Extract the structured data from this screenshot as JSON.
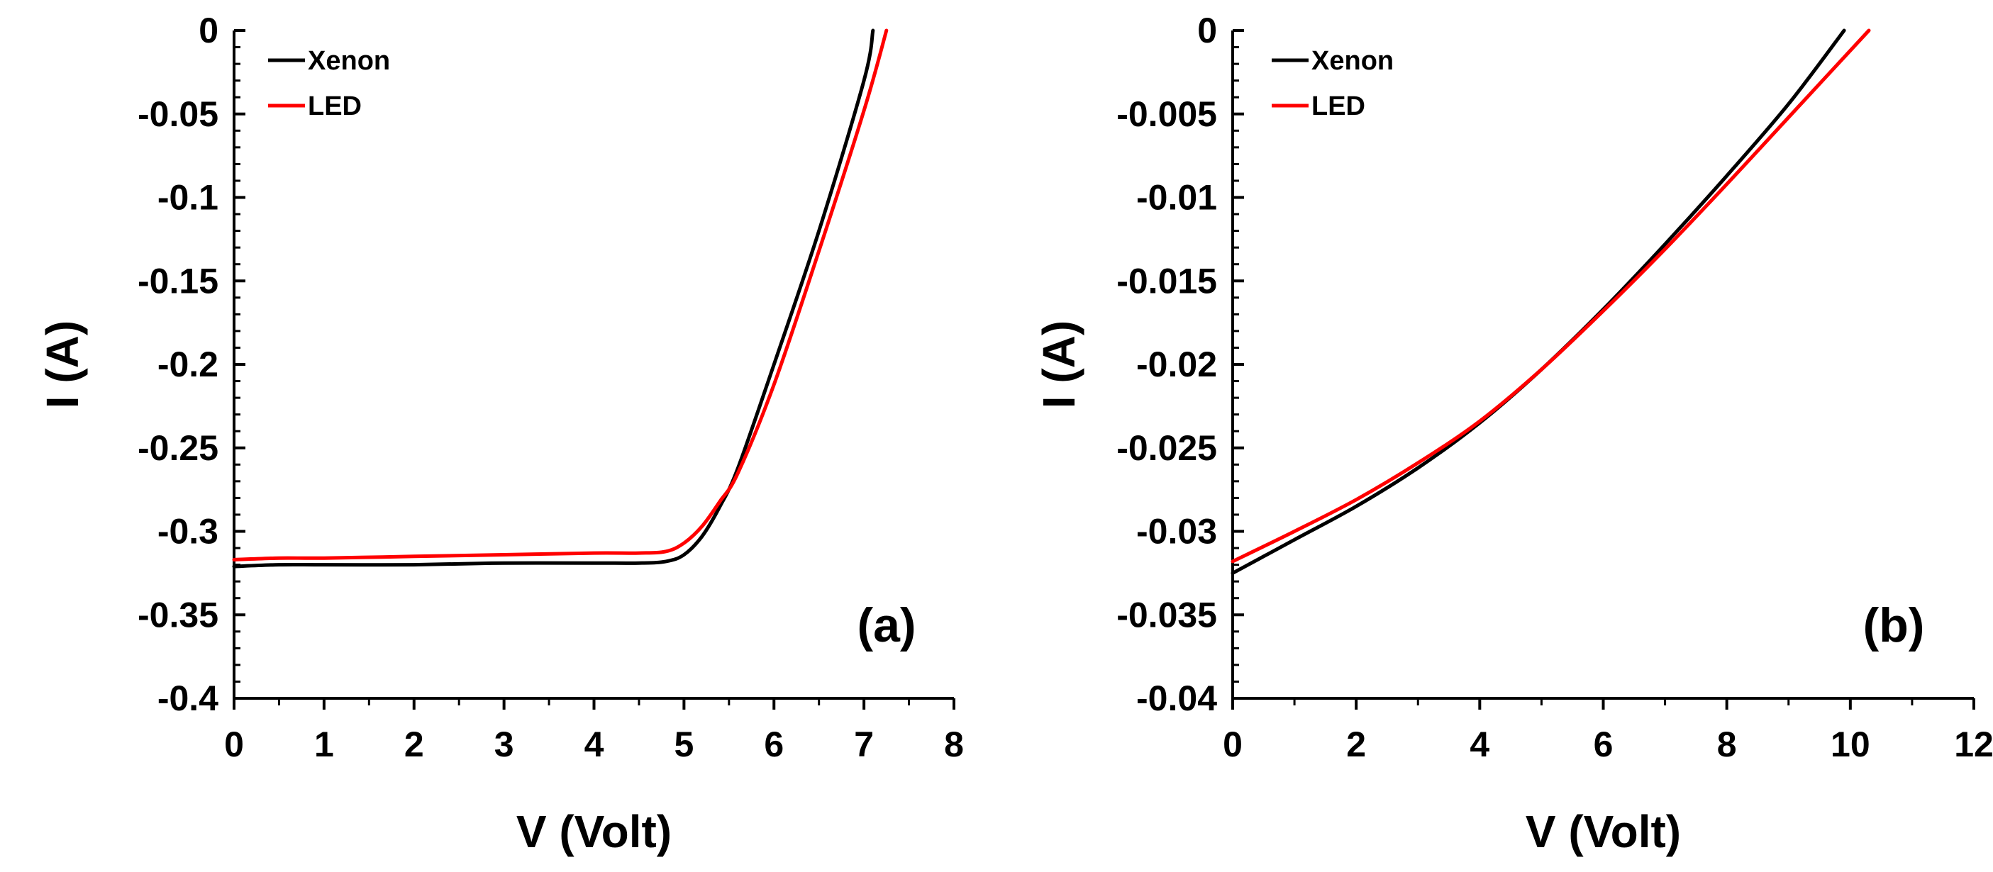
{
  "chart_data": [
    {
      "type": "line",
      "panel_label": "(a)",
      "xlabel": "V (Volt)",
      "ylabel": "I (A)",
      "xlim": [
        0,
        8
      ],
      "ylim": [
        -0.4,
        0
      ],
      "xticks": [
        0,
        1,
        2,
        3,
        4,
        5,
        6,
        7,
        8
      ],
      "xtick_labels": [
        "0",
        "1",
        "2",
        "3",
        "4",
        "5",
        "6",
        "7",
        "8"
      ],
      "yticks": [
        0,
        -0.05,
        -0.1,
        -0.15,
        -0.2,
        -0.25,
        -0.3,
        -0.35,
        -0.4
      ],
      "ytick_labels": [
        "0",
        "-0.05",
        "-0.1",
        "-0.15",
        "-0.2",
        "-0.25",
        "-0.3",
        "-0.35",
        "-0.4"
      ],
      "legend_position": "top-left",
      "series": [
        {
          "name": "Xenon",
          "color": "#000000",
          "x": [
            0,
            0.5,
            1,
            2,
            3,
            4,
            4.5,
            4.8,
            5.0,
            5.2,
            5.4,
            5.6,
            6.0,
            6.5,
            7.0,
            7.1
          ],
          "y": [
            -0.321,
            -0.32,
            -0.32,
            -0.32,
            -0.319,
            -0.319,
            -0.319,
            -0.318,
            -0.314,
            -0.303,
            -0.285,
            -0.262,
            -0.2,
            -0.12,
            -0.03,
            0
          ]
        },
        {
          "name": "LED",
          "color": "#ff0000",
          "x": [
            0,
            0.5,
            1,
            2,
            3,
            4,
            4.5,
            4.8,
            5.0,
            5.2,
            5.4,
            5.6,
            6.0,
            6.5,
            7.0,
            7.25
          ],
          "y": [
            -0.317,
            -0.316,
            -0.316,
            -0.315,
            -0.314,
            -0.313,
            -0.313,
            -0.312,
            -0.307,
            -0.297,
            -0.282,
            -0.265,
            -0.212,
            -0.132,
            -0.048,
            0
          ]
        }
      ]
    },
    {
      "type": "line",
      "panel_label": "(b)",
      "xlabel": "V (Volt)",
      "ylabel": "I (A)",
      "xlim": [
        0,
        12
      ],
      "ylim": [
        -0.04,
        0
      ],
      "xticks": [
        0,
        2,
        4,
        6,
        8,
        10,
        12
      ],
      "xtick_labels": [
        "0",
        "2",
        "4",
        "6",
        "8",
        "10",
        "12"
      ],
      "yticks": [
        0,
        -0.005,
        -0.01,
        -0.015,
        -0.02,
        -0.025,
        -0.03,
        -0.035,
        -0.04
      ],
      "ytick_labels": [
        "0",
        "-0.005",
        "-0.01",
        "-0.015",
        "-0.02",
        "-0.025",
        "-0.03",
        "-0.035",
        "-0.04"
      ],
      "legend_position": "top-left",
      "series": [
        {
          "name": "Xenon",
          "color": "#000000",
          "x": [
            0,
            1,
            2,
            3,
            4,
            5,
            6,
            7,
            8,
            9,
            9.9
          ],
          "y": [
            -0.0325,
            -0.0305,
            -0.0285,
            -0.0262,
            -0.0235,
            -0.0203,
            -0.0167,
            -0.0128,
            -0.0087,
            -0.0044,
            0
          ]
        },
        {
          "name": "LED",
          "color": "#ff0000",
          "x": [
            0,
            1,
            2,
            3,
            4,
            5,
            6,
            7,
            8,
            9,
            10.3
          ],
          "y": [
            -0.0318,
            -0.03,
            -0.0281,
            -0.0259,
            -0.0234,
            -0.0203,
            -0.0168,
            -0.0131,
            -0.0092,
            -0.0052,
            0
          ]
        }
      ]
    }
  ]
}
